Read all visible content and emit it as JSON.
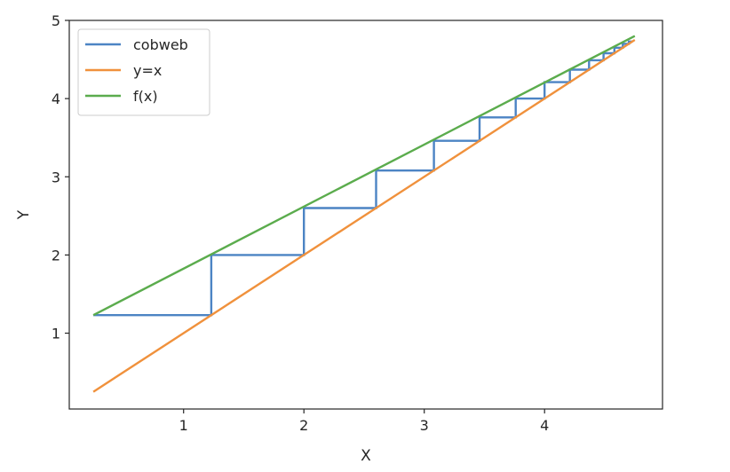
{
  "chart_data": {
    "type": "line",
    "xlabel": "X",
    "ylabel": "Y",
    "xlim": [
      0.05,
      4.98
    ],
    "ylim": [
      0.03,
      5.0
    ],
    "xticks": [
      1,
      2,
      3,
      4
    ],
    "yticks": [
      1,
      2,
      3,
      4,
      5
    ],
    "grid": false,
    "legend_position": "top-left",
    "colors": {
      "cobweb": "#4c84c4",
      "y_equals_x": "#f0913c",
      "fx": "#5bac4d",
      "axes": "#262626"
    },
    "series": [
      {
        "name": "cobweb",
        "x": [
          0.25,
          1.23,
          1.23,
          2.0,
          2.0,
          2.6,
          2.6,
          3.08,
          3.08,
          3.46,
          3.46,
          3.76,
          3.76,
          4.0,
          4.0,
          4.21,
          4.21,
          4.37,
          4.37,
          4.49,
          4.49,
          4.58,
          4.58,
          4.65,
          4.65,
          4.7,
          4.7,
          4.73
        ],
        "y": [
          1.23,
          1.23,
          2.0,
          2.0,
          2.6,
          2.6,
          3.08,
          3.08,
          3.46,
          3.46,
          3.76,
          3.76,
          4.0,
          4.0,
          4.21,
          4.21,
          4.37,
          4.37,
          4.49,
          4.49,
          4.58,
          4.58,
          4.65,
          4.65,
          4.7,
          4.7,
          4.73,
          4.73
        ]
      },
      {
        "name": "y=x",
        "x": [
          0.25,
          4.75
        ],
        "y": [
          0.25,
          4.75
        ]
      },
      {
        "name": "f(x)",
        "x": [
          0.25,
          4.75
        ],
        "y": [
          1.23,
          4.8
        ]
      }
    ]
  }
}
